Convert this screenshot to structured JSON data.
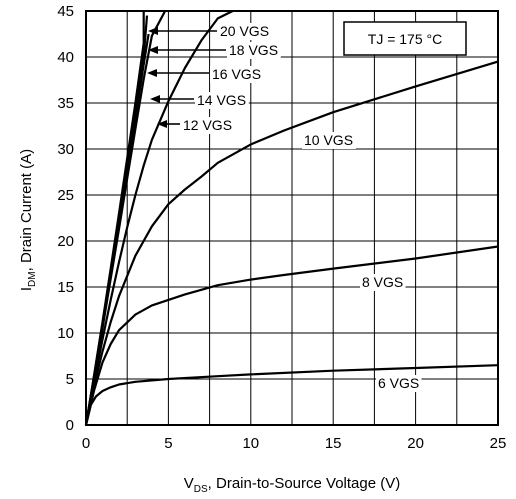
{
  "chart_data": {
    "type": "line",
    "xlabel": "V_DS, Drain-to-Source Voltage (V)",
    "xlabel_parts": {
      "main": "V",
      "sub": "DS",
      "rest": ", Drain-to-Source Voltage (V)"
    },
    "ylabel": "I_DM, Drain Current (A)",
    "ylabel_parts": {
      "main": "I",
      "sub": "DM",
      "rest": ", Drain Current (A)"
    },
    "xlim": [
      0,
      25
    ],
    "ylim": [
      0,
      45
    ],
    "x_ticks": [
      "0",
      "5",
      "10",
      "15",
      "20",
      "25"
    ],
    "y_ticks": [
      "0",
      "5",
      "10",
      "15",
      "20",
      "25",
      "30",
      "35",
      "40",
      "45"
    ],
    "grid": true,
    "annotation": "TJ = 175 °C",
    "series": [
      {
        "name": "20 VGS",
        "x": [
          0,
          0.5,
          1,
          1.5,
          2,
          2.5,
          3,
          3.5,
          3.5
        ],
        "y": [
          0,
          5.5,
          11.2,
          17,
          23,
          29,
          35,
          41.5,
          45
        ]
      },
      {
        "name": "18 VGS",
        "x": [
          0,
          0.5,
          1,
          1.5,
          2,
          2.5,
          3,
          3.5,
          3.7
        ],
        "y": [
          0,
          5.4,
          11,
          16.6,
          22.4,
          28.2,
          34,
          40,
          44.5
        ]
      },
      {
        "name": "16 VGS",
        "x": [
          0,
          0.5,
          1,
          1.5,
          2,
          2.5,
          3,
          3.5,
          3.8
        ],
        "y": [
          0,
          5.3,
          10.8,
          16.3,
          22,
          27.7,
          33.4,
          39.2,
          42.5
        ]
      },
      {
        "name": "14 VGS",
        "x": [
          0,
          0.5,
          1,
          1.5,
          2,
          2.5,
          3,
          3.5,
          4,
          4.8
        ],
        "y": [
          0,
          5.2,
          10.5,
          15.9,
          21.3,
          26.8,
          32.2,
          37.6,
          42.3,
          45
        ]
      },
      {
        "name": "12 VGS",
        "x": [
          0,
          0.5,
          1,
          1.5,
          2,
          2.5,
          3,
          3.5,
          4,
          5,
          6,
          7,
          8,
          8.9
        ],
        "y": [
          0,
          4.8,
          9.3,
          13.6,
          17.7,
          21.5,
          25,
          28.2,
          31,
          35.2,
          38.8,
          41.8,
          44.2,
          45
        ]
      },
      {
        "name": "10 VGS",
        "x": [
          0,
          0.5,
          1,
          1.5,
          2,
          3,
          4,
          5,
          6,
          7,
          8,
          10,
          12,
          15,
          20,
          25
        ],
        "y": [
          0,
          4.3,
          8,
          11.2,
          14,
          18.4,
          21.6,
          24,
          25.6,
          27,
          28.5,
          30.5,
          32,
          34,
          36.8,
          39.5
        ]
      },
      {
        "name": "8 VGS",
        "x": [
          0,
          0.5,
          1,
          1.5,
          2,
          3,
          4,
          5,
          6,
          8,
          10,
          12,
          15,
          20,
          25
        ],
        "y": [
          0,
          3.8,
          6.8,
          8.8,
          10.3,
          12,
          13,
          13.6,
          14.2,
          15.2,
          15.8,
          16.3,
          17,
          18.1,
          19.4
        ]
      },
      {
        "name": "6 VGS",
        "x": [
          0,
          0.3,
          0.6,
          1,
          1.5,
          2,
          3,
          5,
          8,
          10,
          15,
          20,
          25
        ],
        "y": [
          0,
          2.2,
          3.1,
          3.7,
          4.1,
          4.4,
          4.7,
          5,
          5.3,
          5.5,
          5.9,
          6.2,
          6.5
        ]
      }
    ]
  }
}
